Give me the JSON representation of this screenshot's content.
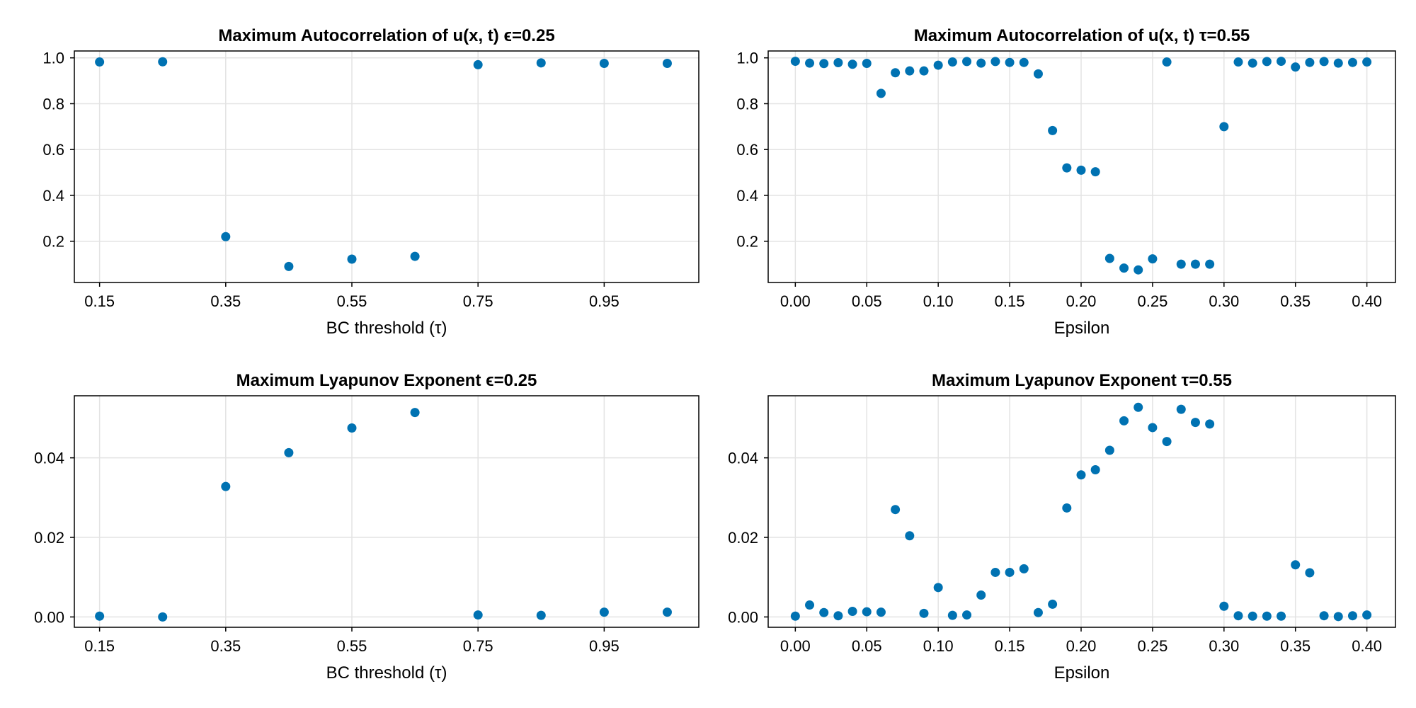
{
  "chart_data": [
    {
      "type": "scatter",
      "title": "Maximum Autocorrelation of u(x, t) ϵ=0.25",
      "xlabel": "BC threshold (τ)",
      "ylabel": "",
      "color": "#0072b2",
      "xlim": [
        0.11,
        1.1
      ],
      "ylim": [
        0.02,
        1.03
      ],
      "xticks": [
        0.15,
        0.35,
        0.55,
        0.75,
        0.95
      ],
      "xtick_labels": [
        "0.15",
        "0.35",
        "0.55",
        "0.75",
        "0.95"
      ],
      "yticks": [
        0.2,
        0.4,
        0.6,
        0.8,
        1.0
      ],
      "ytick_labels": [
        "0.2",
        "0.4",
        "0.6",
        "0.8",
        "1.0"
      ],
      "x": [
        0.15,
        0.25,
        0.35,
        0.45,
        0.55,
        0.65,
        0.75,
        0.85,
        0.95,
        1.05
      ],
      "y": [
        0.982,
        0.983,
        0.22,
        0.09,
        0.122,
        0.134,
        0.97,
        0.978,
        0.976,
        0.976
      ]
    },
    {
      "type": "scatter",
      "title": "Maximum Autocorrelation of u(x, t) τ=0.55",
      "xlabel": "Epsilon",
      "ylabel": "",
      "color": "#0072b2",
      "xlim": [
        -0.019,
        0.42
      ],
      "ylim": [
        0.02,
        1.03
      ],
      "xticks": [
        0.0,
        0.05,
        0.1,
        0.15,
        0.2,
        0.25,
        0.3,
        0.35,
        0.4
      ],
      "xtick_labels": [
        "0.00",
        "0.05",
        "0.10",
        "0.15",
        "0.20",
        "0.25",
        "0.30",
        "0.35",
        "0.40"
      ],
      "yticks": [
        0.2,
        0.4,
        0.6,
        0.8,
        1.0
      ],
      "ytick_labels": [
        "0.2",
        "0.4",
        "0.6",
        "0.8",
        "1.0"
      ],
      "x": [
        0.0,
        0.01,
        0.02,
        0.03,
        0.04,
        0.05,
        0.06,
        0.07,
        0.08,
        0.09,
        0.1,
        0.11,
        0.12,
        0.13,
        0.14,
        0.15,
        0.16,
        0.17,
        0.18,
        0.19,
        0.2,
        0.21,
        0.22,
        0.23,
        0.24,
        0.25,
        0.26,
        0.27,
        0.28,
        0.29,
        0.3,
        0.31,
        0.32,
        0.33,
        0.34,
        0.35,
        0.36,
        0.37,
        0.38,
        0.39,
        0.4
      ],
      "y": [
        0.985,
        0.977,
        0.975,
        0.979,
        0.972,
        0.976,
        0.845,
        0.935,
        0.943,
        0.943,
        0.968,
        0.982,
        0.984,
        0.977,
        0.984,
        0.98,
        0.98,
        0.93,
        0.683,
        0.52,
        0.51,
        0.503,
        0.125,
        0.083,
        0.075,
        0.123,
        0.982,
        0.1,
        0.1,
        0.1,
        0.7,
        0.982,
        0.977,
        0.984,
        0.985,
        0.96,
        0.98,
        0.984,
        0.977,
        0.98,
        0.982
      ]
    },
    {
      "type": "scatter",
      "title": "Maximum Lyapunov Exponent ϵ=0.25",
      "xlabel": "BC threshold (τ)",
      "ylabel": "",
      "color": "#0072b2",
      "xlim": [
        0.11,
        1.1
      ],
      "ylim": [
        -0.0026,
        0.0556
      ],
      "xticks": [
        0.15,
        0.35,
        0.55,
        0.75,
        0.95
      ],
      "xtick_labels": [
        "0.15",
        "0.35",
        "0.55",
        "0.75",
        "0.95"
      ],
      "yticks": [
        0.0,
        0.02,
        0.04
      ],
      "ytick_labels": [
        "0.00",
        "0.02",
        "0.04"
      ],
      "x": [
        0.15,
        0.25,
        0.35,
        0.45,
        0.55,
        0.65,
        0.75,
        0.85,
        0.95,
        1.05
      ],
      "y": [
        0.0002,
        0.0,
        0.0328,
        0.0413,
        0.0475,
        0.0514,
        0.0005,
        0.0004,
        0.0012,
        0.0012
      ]
    },
    {
      "type": "scatter",
      "title": "Maximum Lyapunov Exponent τ=0.55",
      "xlabel": "Epsilon",
      "ylabel": "",
      "color": "#0072b2",
      "xlim": [
        -0.019,
        0.42
      ],
      "ylim": [
        -0.0026,
        0.0556
      ],
      "xticks": [
        0.0,
        0.05,
        0.1,
        0.15,
        0.2,
        0.25,
        0.3,
        0.35,
        0.4
      ],
      "xtick_labels": [
        "0.00",
        "0.05",
        "0.10",
        "0.15",
        "0.20",
        "0.25",
        "0.30",
        "0.35",
        "0.40"
      ],
      "yticks": [
        0.0,
        0.02,
        0.04
      ],
      "ytick_labels": [
        "0.00",
        "0.02",
        "0.04"
      ],
      "x": [
        0.0,
        0.01,
        0.02,
        0.03,
        0.04,
        0.05,
        0.06,
        0.07,
        0.08,
        0.09,
        0.1,
        0.11,
        0.12,
        0.13,
        0.14,
        0.15,
        0.16,
        0.17,
        0.18,
        0.19,
        0.2,
        0.21,
        0.22,
        0.23,
        0.24,
        0.25,
        0.26,
        0.27,
        0.28,
        0.29,
        0.3,
        0.31,
        0.32,
        0.33,
        0.34,
        0.35,
        0.36,
        0.37,
        0.38,
        0.39,
        0.4
      ],
      "y": [
        0.0002,
        0.003,
        0.0011,
        0.0003,
        0.0014,
        0.0013,
        0.0012,
        0.027,
        0.0204,
        0.0009,
        0.0074,
        0.0004,
        0.0005,
        0.0055,
        0.0112,
        0.0112,
        0.0121,
        0.0011,
        0.0032,
        0.0274,
        0.0357,
        0.037,
        0.0419,
        0.0493,
        0.0527,
        0.0476,
        0.0441,
        0.0522,
        0.0489,
        0.0485,
        0.0027,
        0.0003,
        0.0002,
        0.0002,
        0.0002,
        0.0131,
        0.0111,
        0.0003,
        0.0001,
        0.0003,
        0.0005
      ]
    }
  ]
}
